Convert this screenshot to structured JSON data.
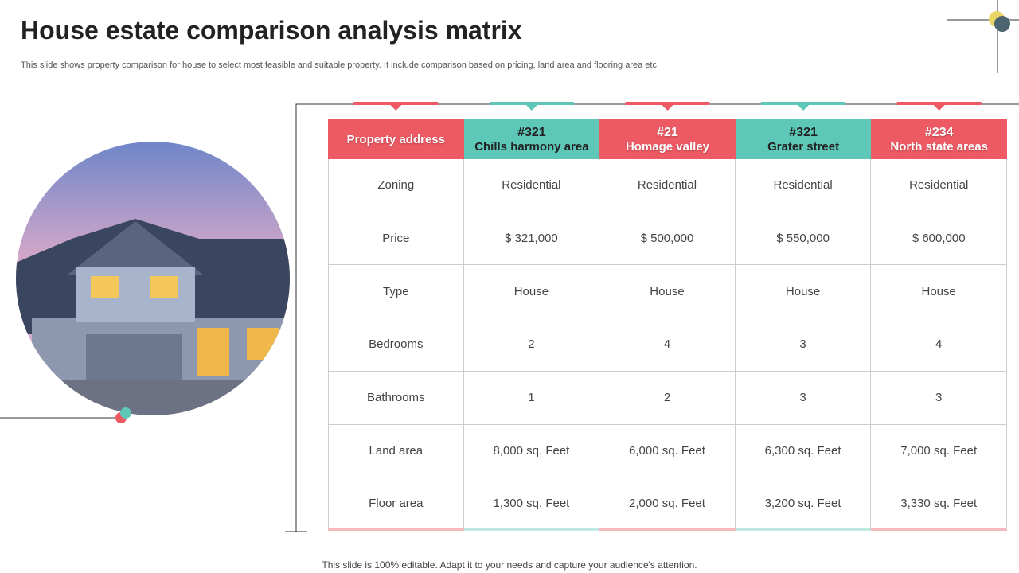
{
  "header": {
    "title": "House estate comparison analysis matrix",
    "subtitle": "This slide shows property comparison for house to select most feasible and suitable property. It include comparison based on pricing, land area and flooring area etc"
  },
  "table": {
    "columns": [
      {
        "label": "Property address"
      },
      {
        "id": "#321",
        "name": "Chills harmony area"
      },
      {
        "id": "#21",
        "name": "Homage valley"
      },
      {
        "id": "#321",
        "name": "Grater street"
      },
      {
        "id": "#234",
        "name": "North state areas"
      }
    ],
    "rows": [
      [
        "Zoning",
        "Residential",
        "Residential",
        "Residential",
        "Residential"
      ],
      [
        "Price",
        "$ 321,000",
        "$ 500,000",
        "$ 550,000",
        "$ 600,000"
      ],
      [
        "Type",
        "House",
        "House",
        "House",
        "House"
      ],
      [
        "Bedrooms",
        "2",
        "4",
        "3",
        "4"
      ],
      [
        "Bathrooms",
        "1",
        "2",
        "3",
        "3"
      ],
      [
        "Land area",
        "8,000 sq. Feet",
        "6,000 sq. Feet",
        "6,300 sq. Feet",
        "7,000 sq. Feet"
      ],
      [
        "Floor area",
        "1,300 sq. Feet",
        "2,000 sq. Feet",
        "3,200 sq. Feet",
        "3,330 sq. Feet"
      ]
    ]
  },
  "footer": "This slide is 100% editable. Adapt it to your needs and capture your audience's attention."
}
